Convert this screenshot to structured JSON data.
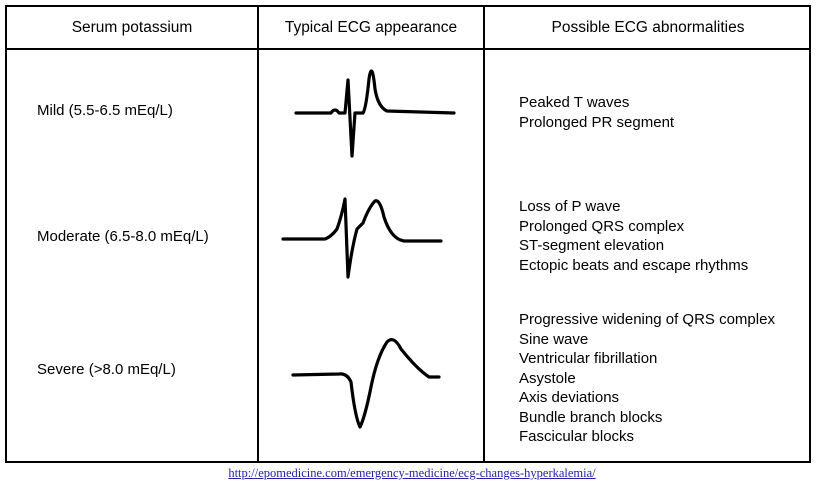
{
  "headers": {
    "col1": "Serum potassium",
    "col2": "Typical ECG appearance",
    "col3": "Possible ECG abnormalities"
  },
  "rows": [
    {
      "level": "Mild (5.5-6.5 mEq/L)",
      "abnormalities": [
        "Peaked T waves",
        "Prolonged PR segment"
      ]
    },
    {
      "level": "Moderate (6.5-8.0 mEq/L)",
      "abnormalities": [
        "Loss of P wave",
        "Prolonged QRS complex",
        "ST-segment elevation",
        "Ectopic beats and escape rhythms"
      ]
    },
    {
      "level": "Severe (>8.0 mEq/L)",
      "abnormalities": [
        "Progressive widening of QRS complex",
        "Sine wave",
        "Ventricular fibrillation",
        "Asystole",
        "Axis deviations",
        "Bundle branch blocks",
        "Fascicular blocks"
      ]
    }
  ],
  "source_url": "http://epomedicine.com/emergency-medicine/ecg-changes-hyperkalemia/"
}
